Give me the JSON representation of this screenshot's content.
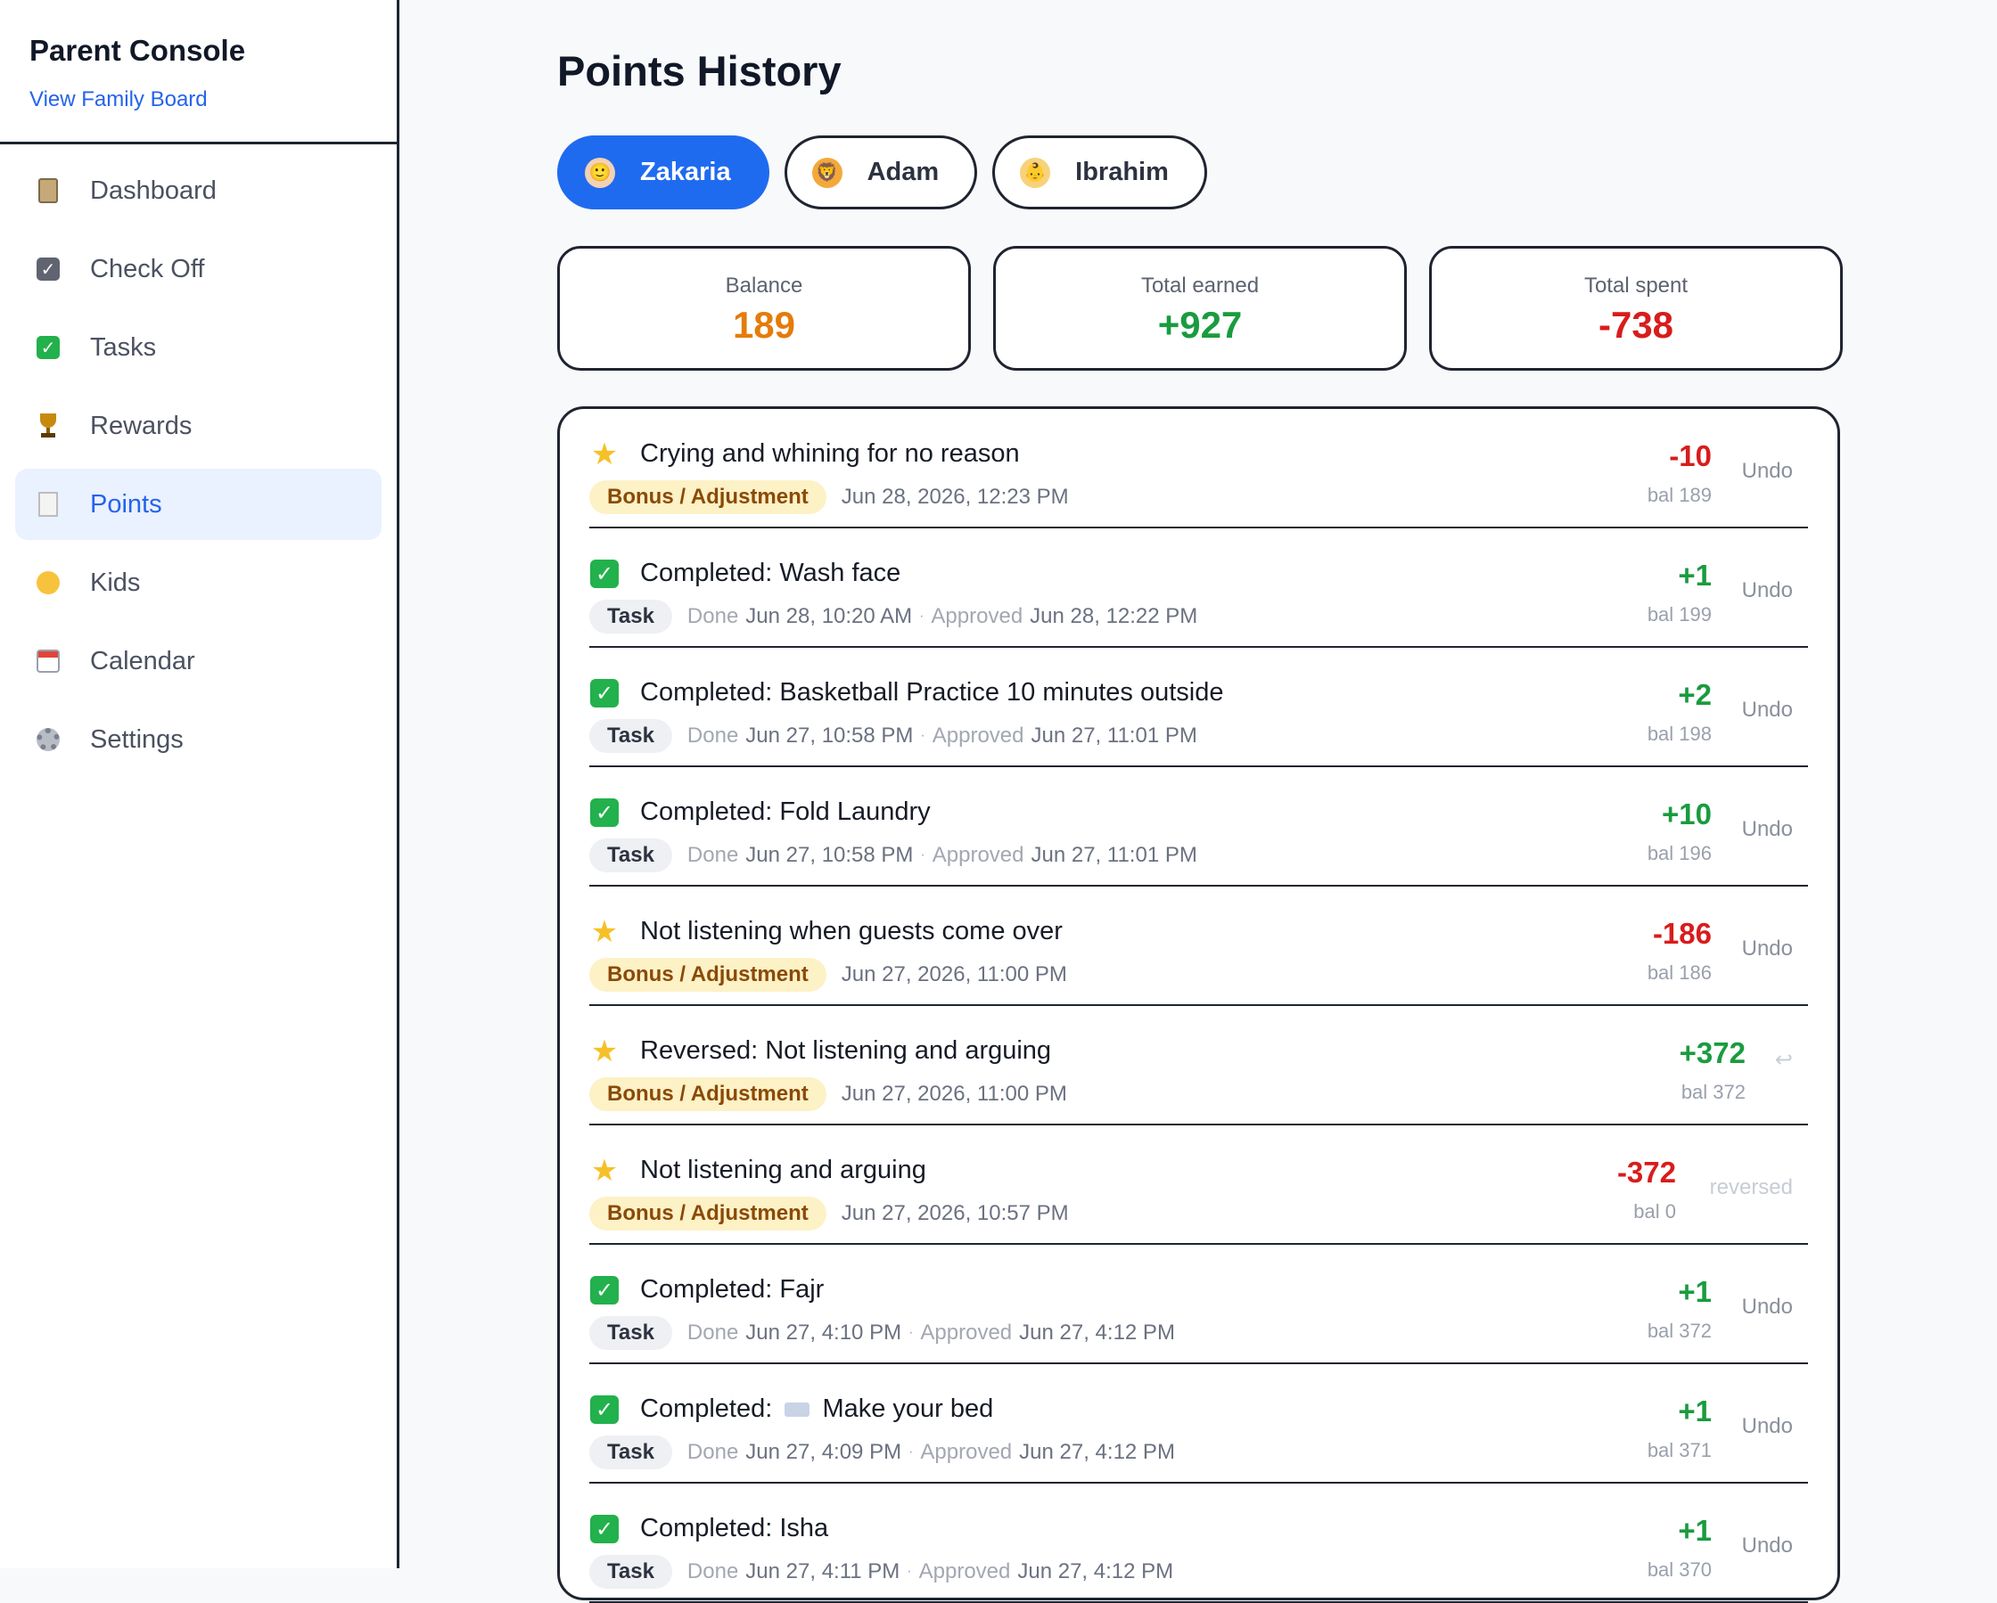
{
  "sidebar": {
    "title": "Parent Console",
    "link": "View Family Board",
    "items": [
      {
        "label": "Dashboard",
        "icon": "clipboard-icon"
      },
      {
        "label": "Check Off",
        "icon": "checkbox-icon"
      },
      {
        "label": "Tasks",
        "icon": "green-check-icon"
      },
      {
        "label": "Rewards",
        "icon": "trophy-icon"
      },
      {
        "label": "Points",
        "icon": "receipt-icon",
        "active": true
      },
      {
        "label": "Kids",
        "icon": "child-face-icon"
      },
      {
        "label": "Calendar",
        "icon": "calendar-icon"
      },
      {
        "label": "Settings",
        "icon": "gear-icon"
      }
    ]
  },
  "page": {
    "title": "Points History"
  },
  "kids": [
    {
      "name": "Zakaria",
      "icon": "boy-avatar-icon",
      "active": true
    },
    {
      "name": "Adam",
      "icon": "lion-avatar-icon"
    },
    {
      "name": "Ibrahim",
      "icon": "baby-avatar-icon"
    }
  ],
  "stats": {
    "balance_label": "Balance",
    "balance": "189",
    "earned_label": "Total earned",
    "earned": "+927",
    "spent_label": "Total spent",
    "spent": "-738"
  },
  "colors": {
    "accent": "#1f6bf0",
    "positive": "#1a9b3f",
    "negative": "#d81c1c",
    "balance": "#e57b0a",
    "bonus_pill": "#fdf1c6"
  },
  "history": [
    {
      "icon": "star-icon",
      "title": "Crying and whining for no reason",
      "tag": "Bonus / Adjustment",
      "date": "Jun 28, 2026, 12:23 PM",
      "amount": "-10",
      "bal": "bal 189",
      "action": "Undo"
    },
    {
      "icon": "check-icon",
      "title": "Completed: Wash face",
      "tag": "Task",
      "done_label": "Done",
      "done": "Jun 28, 10:20 AM",
      "sep": "·",
      "approved_label": "Approved",
      "approved": "Jun 28, 12:22 PM",
      "amount": "+1",
      "bal": "bal 199",
      "action": "Undo"
    },
    {
      "icon": "check-icon",
      "title": "Completed: Basketball Practice 10 minutes outside",
      "tag": "Task",
      "done_label": "Done",
      "done": "Jun 27, 10:58 PM",
      "sep": "·",
      "approved_label": "Approved",
      "approved": "Jun 27, 11:01 PM",
      "amount": "+2",
      "bal": "bal 198",
      "action": "Undo"
    },
    {
      "icon": "check-icon",
      "title": "Completed: Fold Laundry",
      "tag": "Task",
      "done_label": "Done",
      "done": "Jun 27, 10:58 PM",
      "sep": "·",
      "approved_label": "Approved",
      "approved": "Jun 27, 11:01 PM",
      "amount": "+10",
      "bal": "bal 196",
      "action": "Undo"
    },
    {
      "icon": "star-icon",
      "title": "Not listening when guests come over",
      "tag": "Bonus / Adjustment",
      "date": "Jun 27, 2026, 11:00 PM",
      "amount": "-186",
      "bal": "bal 186",
      "action": "Undo"
    },
    {
      "icon": "star-icon",
      "title": "Reversed: Not listening and arguing",
      "tag": "Bonus / Adjustment",
      "date": "Jun 27, 2026, 11:00 PM",
      "amount": "+372",
      "bal": "bal 372",
      "action": "↩"
    },
    {
      "icon": "star-icon",
      "title": "Not listening and arguing",
      "tag": "Bonus / Adjustment",
      "date": "Jun 27, 2026, 10:57 PM",
      "amount": "-372",
      "bal": "bal 0",
      "action": "reversed"
    },
    {
      "icon": "check-icon",
      "title": "Completed: Fajr",
      "tag": "Task",
      "done_label": "Done",
      "done": "Jun 27, 4:10 PM",
      "sep": "·",
      "approved_label": "Approved",
      "approved": "Jun 27, 4:12 PM",
      "amount": "+1",
      "bal": "bal 372",
      "action": "Undo"
    },
    {
      "icon": "check-icon",
      "title_prefix": "Completed:",
      "title_suffix": "Make your bed",
      "title_icon": "bed-icon",
      "tag": "Task",
      "done_label": "Done",
      "done": "Jun 27, 4:09 PM",
      "sep": "·",
      "approved_label": "Approved",
      "approved": "Jun 27, 4:12 PM",
      "amount": "+1",
      "bal": "bal 371",
      "action": "Undo"
    },
    {
      "icon": "check-icon",
      "title": "Completed: Isha",
      "tag": "Task",
      "done_label": "Done",
      "done": "Jun 27, 4:11 PM",
      "sep": "·",
      "approved_label": "Approved",
      "approved": "Jun 27, 4:12 PM",
      "amount": "+1",
      "bal": "bal 370",
      "action": "Undo"
    }
  ]
}
